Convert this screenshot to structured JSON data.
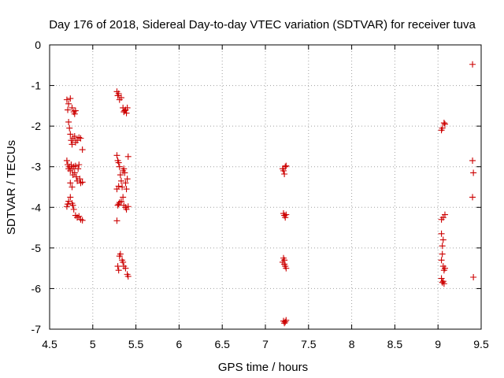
{
  "chart_data": {
    "type": "scatter",
    "title": "Day 176 of 2018, Sidereal Day-to-day VTEC variation (SDTVAR) for receiver tuva",
    "xlabel": "GPS time / hours",
    "ylabel": "SDTVAR / TECUs",
    "xlim": [
      4.5,
      9.5
    ],
    "ylim": [
      -7,
      0
    ],
    "xticks": [
      "4.5",
      "5",
      "5.5",
      "6",
      "6.5",
      "7",
      "7.5",
      "8",
      "8.5",
      "9",
      "9.5"
    ],
    "yticks": [
      "0",
      "-1",
      "-2",
      "-3",
      "-4",
      "-5",
      "-6",
      "-7"
    ],
    "grid": true,
    "marker": "+",
    "marker_color": "#cc0000",
    "series": [
      {
        "name": "SDTVAR",
        "points": [
          [
            4.7,
            -1.35
          ],
          [
            4.72,
            -1.45
          ],
          [
            4.74,
            -1.32
          ],
          [
            4.76,
            -1.55
          ],
          [
            4.78,
            -1.65
          ],
          [
            4.8,
            -1.62
          ],
          [
            4.79,
            -1.7
          ],
          [
            4.71,
            -1.6
          ],
          [
            4.72,
            -1.9
          ],
          [
            4.73,
            -2.05
          ],
          [
            4.74,
            -2.2
          ],
          [
            4.75,
            -2.35
          ],
          [
            4.76,
            -2.45
          ],
          [
            4.77,
            -2.3
          ],
          [
            4.79,
            -2.25
          ],
          [
            4.8,
            -2.4
          ],
          [
            4.82,
            -2.35
          ],
          [
            4.84,
            -2.28
          ],
          [
            4.86,
            -2.3
          ],
          [
            4.88,
            -2.58
          ],
          [
            4.7,
            -2.85
          ],
          [
            4.71,
            -2.95
          ],
          [
            4.72,
            -3.05
          ],
          [
            4.73,
            -3.0
          ],
          [
            4.74,
            -3.1
          ],
          [
            4.75,
            -2.95
          ],
          [
            4.76,
            -3.05
          ],
          [
            4.77,
            -3.2
          ],
          [
            4.78,
            -3.0
          ],
          [
            4.79,
            -3.15
          ],
          [
            4.8,
            -2.98
          ],
          [
            4.81,
            -3.25
          ],
          [
            4.82,
            -3.35
          ],
          [
            4.83,
            -3.05
          ],
          [
            4.84,
            -2.95
          ],
          [
            4.85,
            -3.3
          ],
          [
            4.86,
            -3.4
          ],
          [
            4.88,
            -3.38
          ],
          [
            4.76,
            -3.5
          ],
          [
            4.74,
            -3.4
          ],
          [
            4.7,
            -3.98
          ],
          [
            4.71,
            -3.92
          ],
          [
            4.72,
            -3.85
          ],
          [
            4.74,
            -3.75
          ],
          [
            4.76,
            -3.9
          ],
          [
            4.77,
            -3.95
          ],
          [
            4.78,
            -4.05
          ],
          [
            4.8,
            -4.2
          ],
          [
            4.82,
            -4.25
          ],
          [
            4.84,
            -4.22
          ],
          [
            4.86,
            -4.3
          ],
          [
            4.88,
            -4.32
          ],
          [
            5.28,
            -1.15
          ],
          [
            5.29,
            -1.25
          ],
          [
            5.3,
            -1.2
          ],
          [
            5.31,
            -1.35
          ],
          [
            5.33,
            -1.3
          ],
          [
            5.35,
            -1.55
          ],
          [
            5.36,
            -1.65
          ],
          [
            5.38,
            -1.6
          ],
          [
            5.4,
            -1.55
          ],
          [
            5.39,
            -1.68
          ],
          [
            5.37,
            -1.62
          ],
          [
            5.28,
            -2.72
          ],
          [
            5.29,
            -2.85
          ],
          [
            5.3,
            -2.9
          ],
          [
            5.31,
            -3.0
          ],
          [
            5.32,
            -3.2
          ],
          [
            5.33,
            -3.35
          ],
          [
            5.34,
            -3.5
          ],
          [
            5.35,
            -3.1
          ],
          [
            5.36,
            -3.05
          ],
          [
            5.37,
            -3.15
          ],
          [
            5.38,
            -3.4
          ],
          [
            5.39,
            -3.55
          ],
          [
            5.4,
            -3.3
          ],
          [
            5.41,
            -2.75
          ],
          [
            5.3,
            -3.48
          ],
          [
            5.28,
            -3.55
          ],
          [
            5.28,
            -4.33
          ],
          [
            5.29,
            -3.95
          ],
          [
            5.3,
            -3.92
          ],
          [
            5.31,
            -3.88
          ],
          [
            5.33,
            -3.85
          ],
          [
            5.35,
            -3.75
          ],
          [
            5.36,
            -3.95
          ],
          [
            5.38,
            -4.0
          ],
          [
            5.39,
            -4.05
          ],
          [
            5.41,
            -3.98
          ],
          [
            5.29,
            -5.45
          ],
          [
            5.3,
            -5.55
          ],
          [
            5.31,
            -5.2
          ],
          [
            5.32,
            -5.15
          ],
          [
            5.34,
            -5.3
          ],
          [
            5.35,
            -5.35
          ],
          [
            5.36,
            -5.45
          ],
          [
            5.38,
            -5.5
          ],
          [
            5.4,
            -5.65
          ],
          [
            5.41,
            -5.7
          ],
          [
            7.2,
            -3.05
          ],
          [
            7.21,
            -3.1
          ],
          [
            7.22,
            -3.18
          ],
          [
            7.23,
            -3.0
          ],
          [
            7.24,
            -2.98
          ],
          [
            7.21,
            -4.15
          ],
          [
            7.22,
            -4.2
          ],
          [
            7.23,
            -4.25
          ],
          [
            7.24,
            -4.18
          ],
          [
            7.2,
            -5.35
          ],
          [
            7.21,
            -5.25
          ],
          [
            7.22,
            -5.4
          ],
          [
            7.23,
            -5.45
          ],
          [
            7.24,
            -5.5
          ],
          [
            7.22,
            -5.3
          ],
          [
            7.21,
            -6.8
          ],
          [
            7.22,
            -6.85
          ],
          [
            7.23,
            -6.82
          ],
          [
            7.24,
            -6.78
          ],
          [
            9.04,
            -2.1
          ],
          [
            9.05,
            -2.05
          ],
          [
            9.07,
            -1.92
          ],
          [
            9.08,
            -1.95
          ],
          [
            9.04,
            -4.3
          ],
          [
            9.06,
            -4.25
          ],
          [
            9.08,
            -4.18
          ],
          [
            9.06,
            -4.8
          ],
          [
            9.05,
            -4.95
          ],
          [
            9.04,
            -4.65
          ],
          [
            9.04,
            -5.3
          ],
          [
            9.05,
            -5.15
          ],
          [
            9.06,
            -5.45
          ],
          [
            9.07,
            -5.55
          ],
          [
            9.08,
            -5.5
          ],
          [
            9.04,
            -5.75
          ],
          [
            9.05,
            -5.85
          ],
          [
            9.06,
            -5.82
          ],
          [
            9.07,
            -5.88
          ],
          [
            9.4,
            -0.48
          ],
          [
            9.4,
            -2.85
          ],
          [
            9.41,
            -3.15
          ],
          [
            9.4,
            -3.75
          ],
          [
            9.41,
            -5.72
          ]
        ]
      }
    ]
  }
}
